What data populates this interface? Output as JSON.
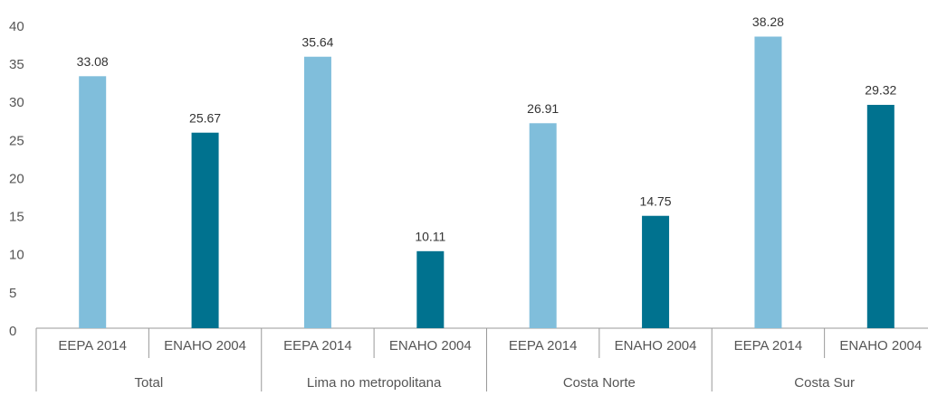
{
  "chart_data": {
    "type": "bar",
    "categories": [
      "EEPA 2014",
      "ENAHO 2004",
      "EEPA 2014",
      "ENAHO 2004",
      "EEPA 2014",
      "ENAHO 2004",
      "EEPA 2014",
      "ENAHO 2004"
    ],
    "groups": [
      "Total",
      "Lima no metropolitana",
      "Costa Norte",
      "Costa Sur"
    ],
    "values": [
      33.08,
      25.67,
      35.64,
      10.11,
      26.91,
      14.75,
      38.28,
      29.32
    ],
    "colors": [
      "#80bedb",
      "#00728f",
      "#80bedb",
      "#00728f",
      "#80bedb",
      "#00728f",
      "#80bedb",
      "#00728f"
    ],
    "ylim": [
      0,
      40
    ],
    "yticks": [
      0,
      5,
      10,
      15,
      20,
      25,
      30,
      35,
      40
    ],
    "grid": false
  }
}
